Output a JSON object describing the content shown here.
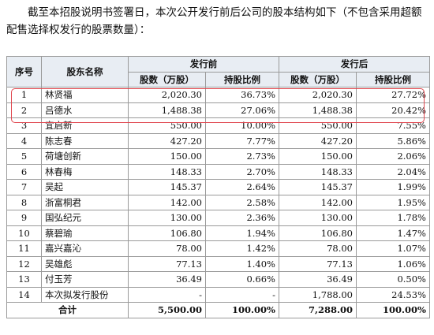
{
  "intro_text": "截至本招股说明书签署日，本次公开发行前后公司的股本结构如下（不包含采用超额配售选择权发行的股票数量）：",
  "table": {
    "headers": {
      "seq": "序号",
      "name": "股东名称",
      "before": "发行前",
      "after": "发行后",
      "shares": "股数（万股）",
      "ratio": "持股比例"
    },
    "rows": [
      {
        "seq": "1",
        "name": "林贤福",
        "before_shares": "2,020.30",
        "before_ratio": "36.73%",
        "after_shares": "2,020.30",
        "after_ratio": "27.72%"
      },
      {
        "seq": "2",
        "name": "吕德水",
        "before_shares": "1,488.38",
        "before_ratio": "27.06%",
        "after_shares": "1,488.38",
        "after_ratio": "20.42%"
      },
      {
        "seq": "3",
        "name": "宜启新",
        "before_shares": "550.00",
        "before_ratio": "10.00%",
        "after_shares": "550.00",
        "after_ratio": "7.55%"
      },
      {
        "seq": "4",
        "name": "陈志春",
        "before_shares": "427.20",
        "before_ratio": "7.77%",
        "after_shares": "427.20",
        "after_ratio": "5.86%"
      },
      {
        "seq": "5",
        "name": "荷塘创新",
        "before_shares": "150.00",
        "before_ratio": "2.73%",
        "after_shares": "150.00",
        "after_ratio": "2.06%"
      },
      {
        "seq": "6",
        "name": "林春梅",
        "before_shares": "148.33",
        "before_ratio": "2.70%",
        "after_shares": "148.33",
        "after_ratio": "2.04%"
      },
      {
        "seq": "7",
        "name": "吴起",
        "before_shares": "145.37",
        "before_ratio": "2.64%",
        "after_shares": "145.37",
        "after_ratio": "1.99%"
      },
      {
        "seq": "8",
        "name": "浙富桐君",
        "before_shares": "142.00",
        "before_ratio": "2.58%",
        "after_shares": "142.00",
        "after_ratio": "1.95%"
      },
      {
        "seq": "9",
        "name": "国弘纪元",
        "before_shares": "130.00",
        "before_ratio": "2.36%",
        "after_shares": "130.00",
        "after_ratio": "1.78%"
      },
      {
        "seq": "10",
        "name": "蔡碧瑜",
        "before_shares": "106.80",
        "before_ratio": "1.94%",
        "after_shares": "106.80",
        "after_ratio": "1.47%"
      },
      {
        "seq": "11",
        "name": "嘉兴嘉沁",
        "before_shares": "78.00",
        "before_ratio": "1.42%",
        "after_shares": "78.00",
        "after_ratio": "1.07%"
      },
      {
        "seq": "12",
        "name": "吴雄彪",
        "before_shares": "77.13",
        "before_ratio": "1.40%",
        "after_shares": "77.13",
        "after_ratio": "1.06%"
      },
      {
        "seq": "13",
        "name": "付玉芳",
        "before_shares": "36.49",
        "before_ratio": "0.66%",
        "after_shares": "36.49",
        "after_ratio": "0.50%"
      },
      {
        "seq": "14",
        "name": "本次拟发行股份",
        "before_shares": "-",
        "before_ratio": "-",
        "after_shares": "1,788.00",
        "after_ratio": "24.53%"
      }
    ],
    "total": {
      "label": "合计",
      "before_shares": "5,500.00",
      "before_ratio": "100.00%",
      "after_shares": "7,288.00",
      "after_ratio": "100.00%"
    }
  },
  "highlight_color": "#e0474f"
}
